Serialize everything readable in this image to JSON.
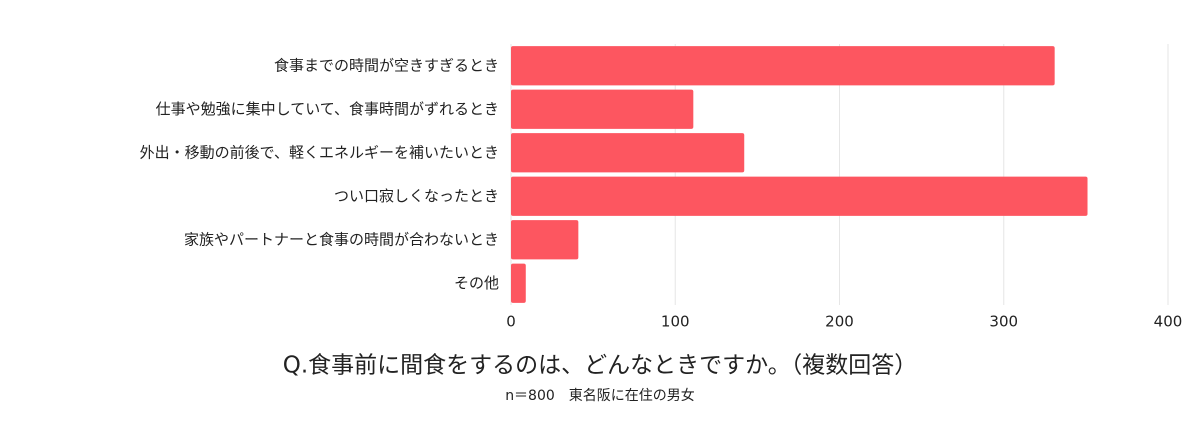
{
  "chart_data": {
    "type": "bar",
    "orientation": "horizontal",
    "title": "Q.食事前に間食をするのは、どんなときですか。（複数回答）",
    "subtitle": "n＝800　東名阪に在住の男女",
    "categories": [
      "食事までの時間が空きすぎるとき",
      "仕事や勉強に集中していて、食事時間がずれるとき",
      "外出・移動の前後で、軽くエネルギーを補いたいとき",
      "つい口寂しくなったとき",
      "家族やパートナーと食事の時間が合わないとき",
      "その他"
    ],
    "values": [
      331,
      111,
      142,
      351,
      41,
      9
    ],
    "color": "#fd5660",
    "xlim": [
      0,
      400
    ],
    "xticks": [
      0,
      100,
      200,
      300,
      400
    ],
    "grid": true
  }
}
